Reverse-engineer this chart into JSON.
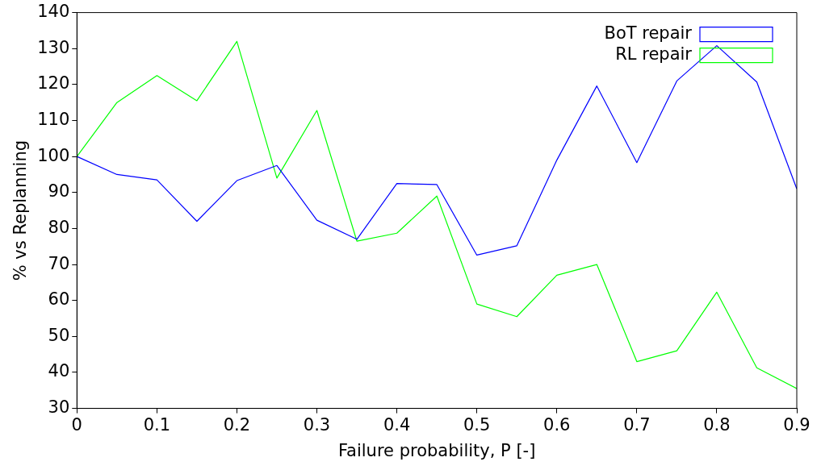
{
  "chart_data": {
    "type": "line",
    "xlabel": "Failure probability, P [-]",
    "ylabel": "% vs Replanning",
    "x": [
      0,
      0.05,
      0.1,
      0.15,
      0.2,
      0.25,
      0.3,
      0.35,
      0.4,
      0.45,
      0.5,
      0.55,
      0.6,
      0.65,
      0.7,
      0.75,
      0.8,
      0.85,
      0.9
    ],
    "series": [
      {
        "name": "BoT repair",
        "color": "#0000ff",
        "values": [
          100,
          95,
          93.5,
          82,
          93.3,
          97.5,
          82.3,
          77,
          92.5,
          92.2,
          72.6,
          75.2,
          99,
          119.6,
          98.3,
          121,
          130.8,
          120.7,
          91
        ]
      },
      {
        "name": "RL repair",
        "color": "#00ff00",
        "values": [
          100,
          115,
          122.5,
          115.5,
          132,
          94,
          112.8,
          76.5,
          78.7,
          89,
          59,
          55.5,
          67,
          70,
          43,
          46,
          62.3,
          41.3,
          35.5
        ]
      }
    ],
    "xlim": [
      0,
      0.9
    ],
    "xticks": [
      0,
      0.1,
      0.2,
      0.3,
      0.4,
      0.5,
      0.6,
      0.7,
      0.8,
      0.9
    ],
    "ylim": [
      30,
      140
    ],
    "yticks": [
      30,
      40,
      50,
      60,
      70,
      80,
      90,
      100,
      110,
      120,
      130,
      140
    ],
    "grid": false,
    "legend": "top right",
    "marker": "none",
    "line_style": "solid"
  }
}
